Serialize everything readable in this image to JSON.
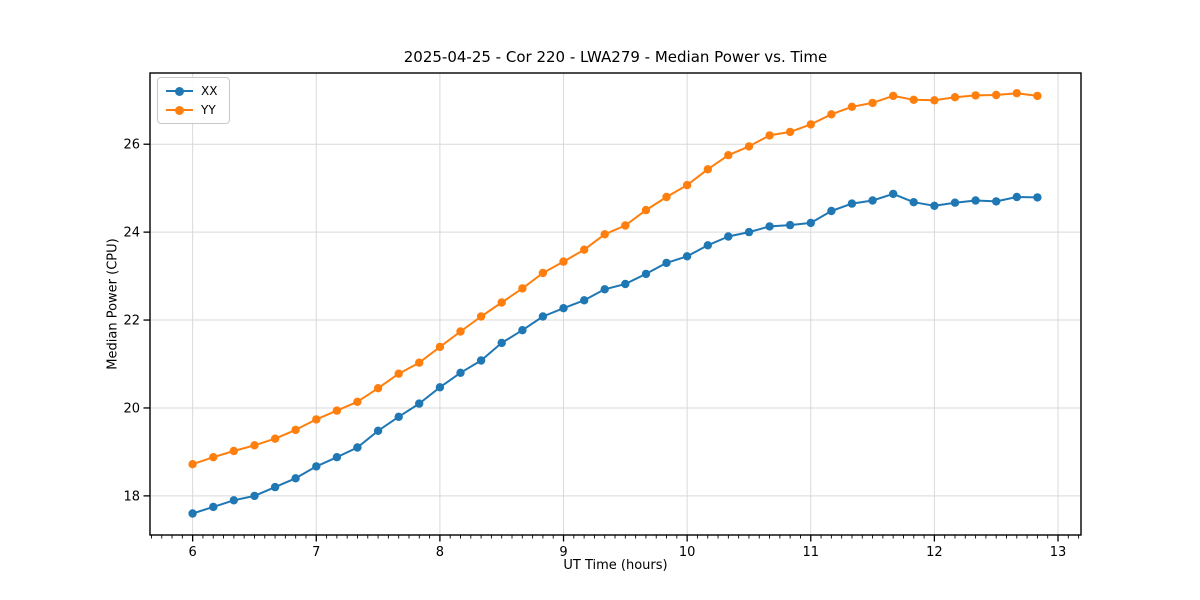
{
  "figure": {
    "title": "2025-04-25 - Cor 220 - LWA279 - Median Power vs. Time"
  },
  "chart_data": {
    "type": "line",
    "title": "2025-04-25 - Cor 220 - LWA279 - Median Power vs. Time",
    "xlabel": "UT Time (hours)",
    "ylabel": "Median Power (CPU)",
    "xlim": [
      5.655,
      13.186
    ],
    "ylim": [
      17.11,
      27.62
    ],
    "x_ticks": [
      6,
      7,
      8,
      9,
      10,
      11,
      12,
      13
    ],
    "y_ticks": [
      18,
      20,
      22,
      24,
      26
    ],
    "x_minor_step_minutes": 5,
    "grid": true,
    "grid_color": "#d9d9d9",
    "spine_color": "#000000",
    "legend_position": "upper left",
    "marker": "o",
    "x": [
      6.0,
      6.167,
      6.333,
      6.5,
      6.667,
      6.833,
      7.0,
      7.167,
      7.333,
      7.5,
      7.667,
      7.833,
      8.0,
      8.167,
      8.333,
      8.5,
      8.667,
      8.833,
      9.0,
      9.167,
      9.333,
      9.5,
      9.667,
      9.833,
      10.0,
      10.167,
      10.333,
      10.5,
      10.667,
      10.833,
      11.0,
      11.167,
      11.333,
      11.5,
      11.667,
      11.833,
      12.0,
      12.167,
      12.333,
      12.5,
      12.667,
      12.833
    ],
    "series": [
      {
        "name": "XX",
        "color": "#1f77b4",
        "values": [
          17.6,
          17.75,
          17.9,
          18.0,
          18.2,
          18.4,
          18.67,
          18.88,
          19.1,
          19.48,
          19.8,
          20.1,
          20.47,
          20.8,
          21.08,
          21.48,
          21.77,
          22.08,
          22.27,
          22.45,
          22.7,
          22.82,
          23.05,
          23.3,
          23.45,
          23.7,
          23.9,
          24.0,
          24.13,
          24.16,
          24.21,
          24.48,
          24.65,
          24.72,
          24.87,
          24.68,
          24.6,
          24.67,
          24.72,
          24.7,
          24.8,
          24.79
        ]
      },
      {
        "name": "YY",
        "color": "#ff7f0e",
        "values": [
          18.72,
          18.88,
          19.02,
          19.15,
          19.3,
          19.5,
          19.74,
          19.94,
          20.14,
          20.45,
          20.78,
          21.03,
          21.39,
          21.74,
          22.08,
          22.4,
          22.72,
          23.07,
          23.33,
          23.6,
          23.95,
          24.15,
          24.5,
          24.8,
          25.07,
          25.43,
          25.75,
          25.95,
          26.2,
          26.28,
          26.45,
          26.68,
          26.85,
          26.94,
          27.1,
          27.01,
          27.0,
          27.07,
          27.11,
          27.12,
          27.16,
          27.1
        ]
      }
    ]
  }
}
